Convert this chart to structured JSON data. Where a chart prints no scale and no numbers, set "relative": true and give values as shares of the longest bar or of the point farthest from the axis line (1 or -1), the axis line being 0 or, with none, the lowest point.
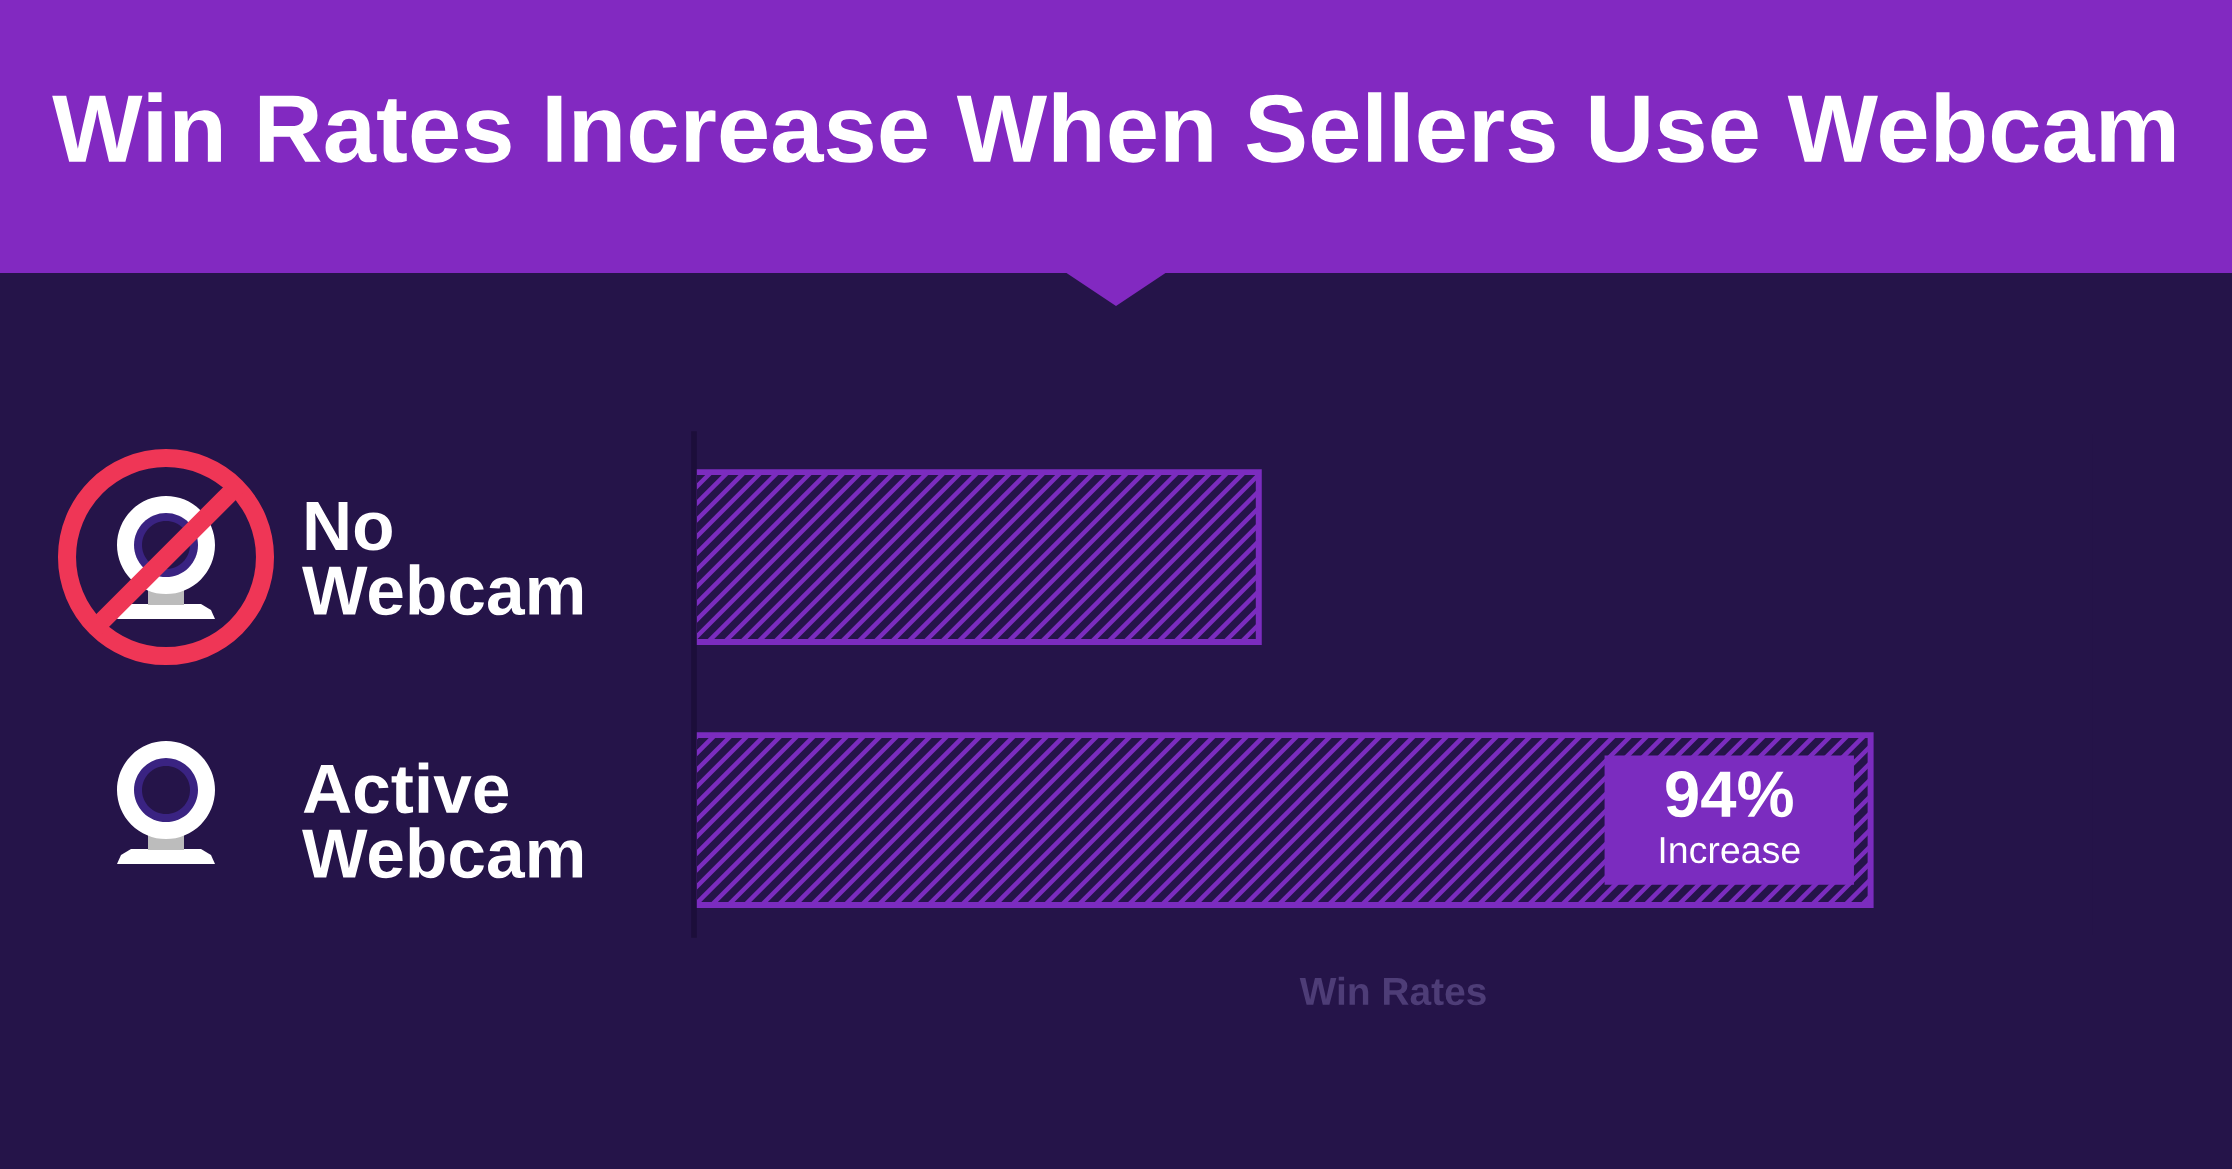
{
  "chart_data": {
    "type": "bar",
    "orientation": "horizontal",
    "relative": true,
    "title": "Win Rates Increase When Sellers Use Webcam",
    "xlabel": "Win Rates",
    "categories": [
      "No\nWebcam",
      "Active\nWebcam"
    ],
    "values": [
      0.48,
      1
    ],
    "color": "#7b2cbf",
    "annotations": [
      "94%",
      "Increase"
    ]
  }
}
